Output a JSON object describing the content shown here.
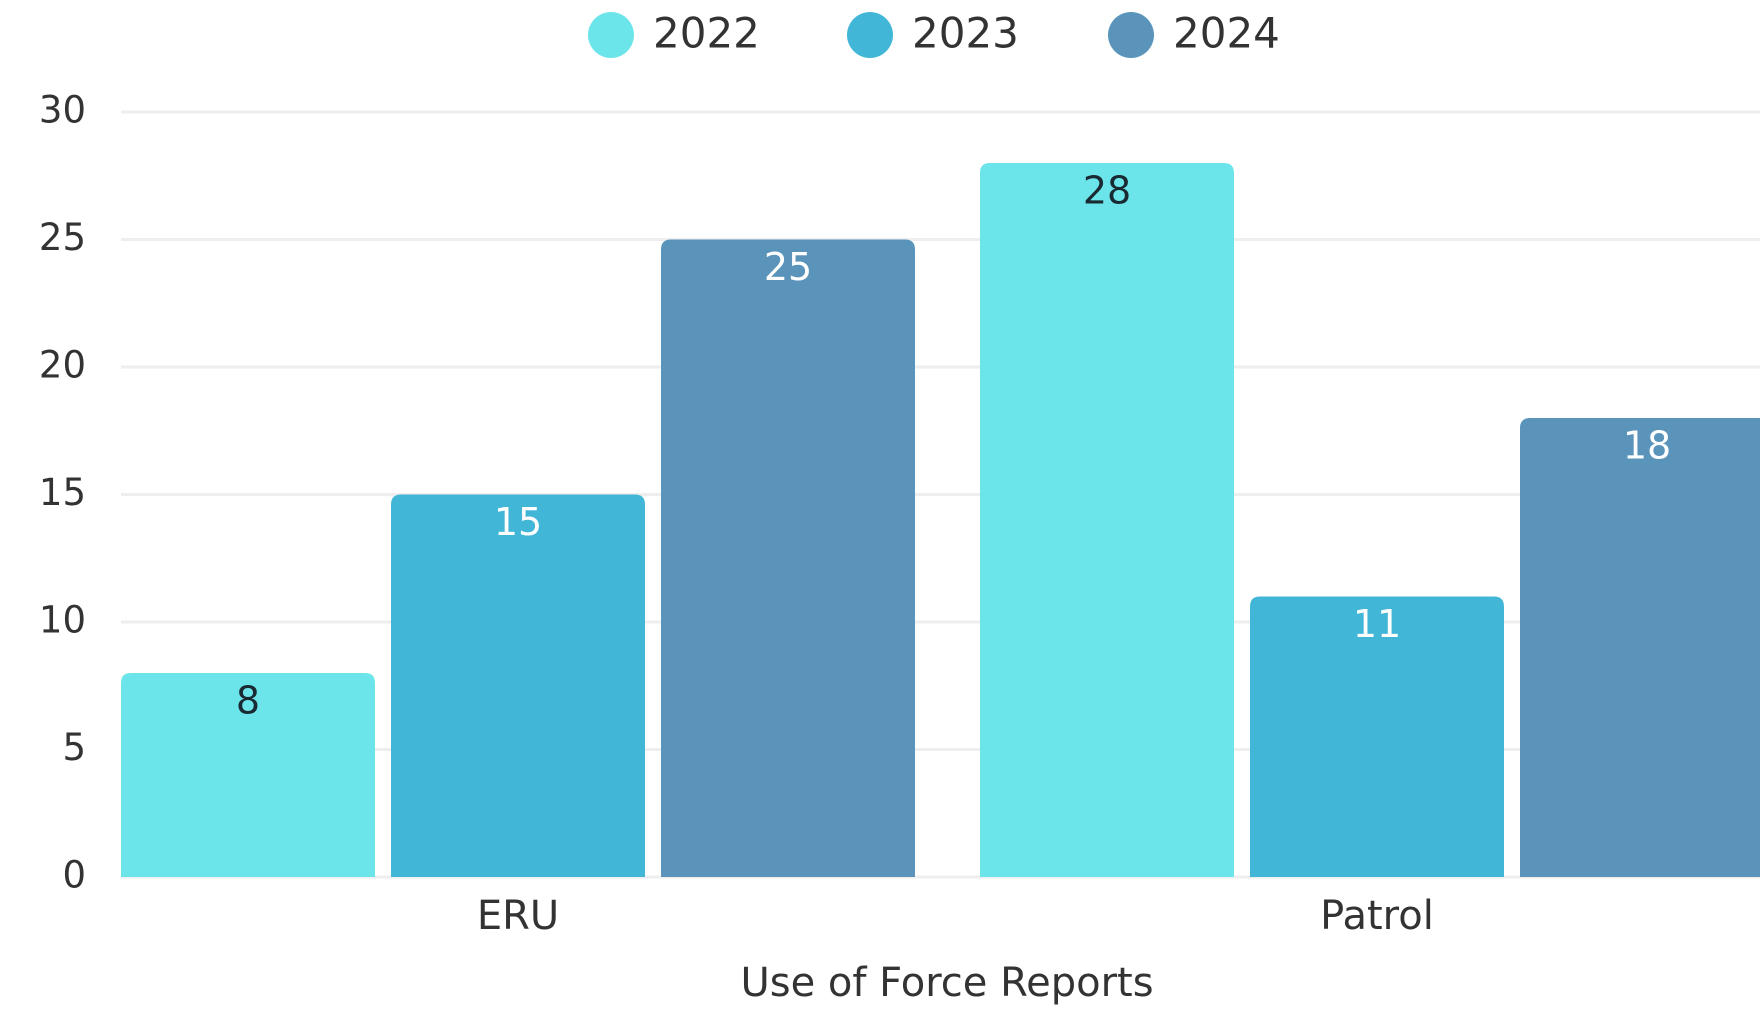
{
  "chart_data": {
    "type": "bar",
    "x_label": "Use of Force Reports",
    "categories": [
      "ERU",
      "Patrol"
    ],
    "series": [
      {
        "name": "2022",
        "color": "#6ce5ea",
        "values": [
          8,
          28
        ]
      },
      {
        "name": "2023",
        "color": "#42b6d6",
        "values": [
          15,
          11
        ]
      },
      {
        "name": "2024",
        "color": "#5a94bb",
        "values": [
          25,
          18
        ]
      }
    ],
    "ylim": [
      0,
      30
    ],
    "yticks": [
      0,
      5,
      10,
      15,
      20,
      25,
      30
    ],
    "grid": true,
    "legend": "top"
  }
}
